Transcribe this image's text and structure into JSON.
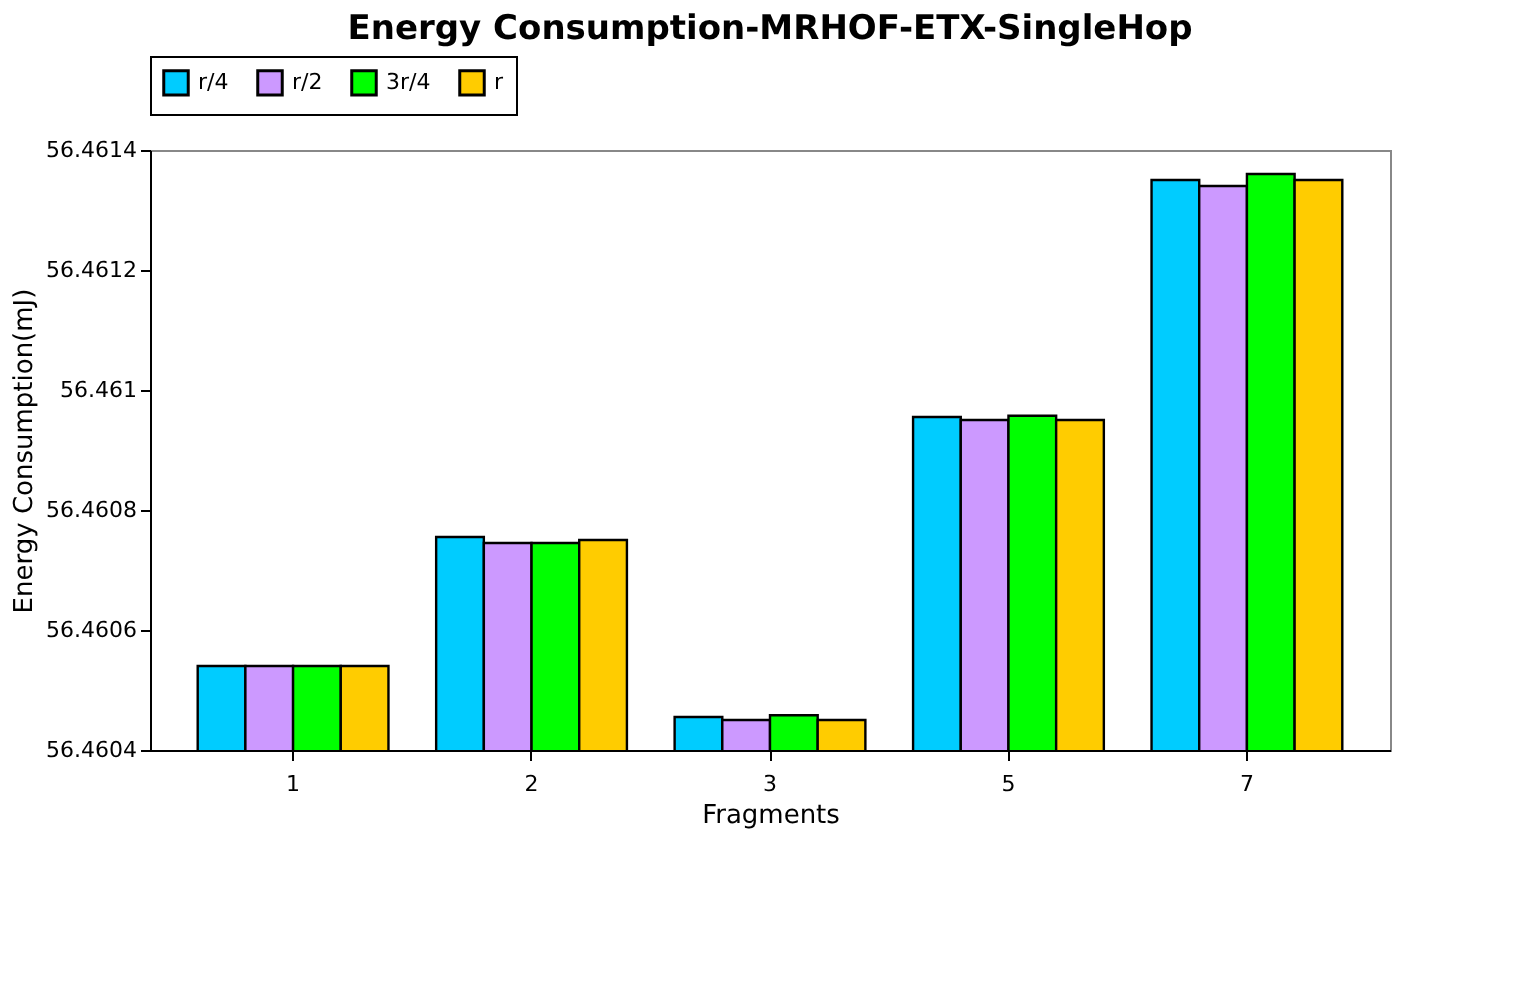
{
  "chart_data": {
    "type": "bar",
    "title": "Energy Consumption-MRHOF-ETX-SingleHop",
    "xlabel": "Fragments",
    "ylabel": "Energy Consumption(mJ)",
    "categories": [
      "1",
      "2",
      "3",
      "5",
      "7"
    ],
    "series": [
      {
        "name": "r/4",
        "color": "#00ccff",
        "values": [
          56.46054,
          56.460755,
          56.460455,
          56.460955,
          56.46135
        ]
      },
      {
        "name": "r/2",
        "color": "#cc99ff",
        "values": [
          56.46054,
          56.460745,
          56.46045,
          56.46095,
          56.46134
        ]
      },
      {
        "name": "3r/4",
        "color": "#00ff00",
        "values": [
          56.46054,
          56.460745,
          56.460458,
          56.460957,
          56.46136
        ]
      },
      {
        "name": "r",
        "color": "#ffcc00",
        "values": [
          56.46054,
          56.46075,
          56.46045,
          56.46095,
          56.46135
        ]
      }
    ],
    "ylim": [
      56.4604,
      56.4614
    ],
    "yticks": [
      56.4604,
      56.4606,
      56.4608,
      56.461,
      56.4612,
      56.4614
    ],
    "grid": false,
    "legend": "top"
  }
}
